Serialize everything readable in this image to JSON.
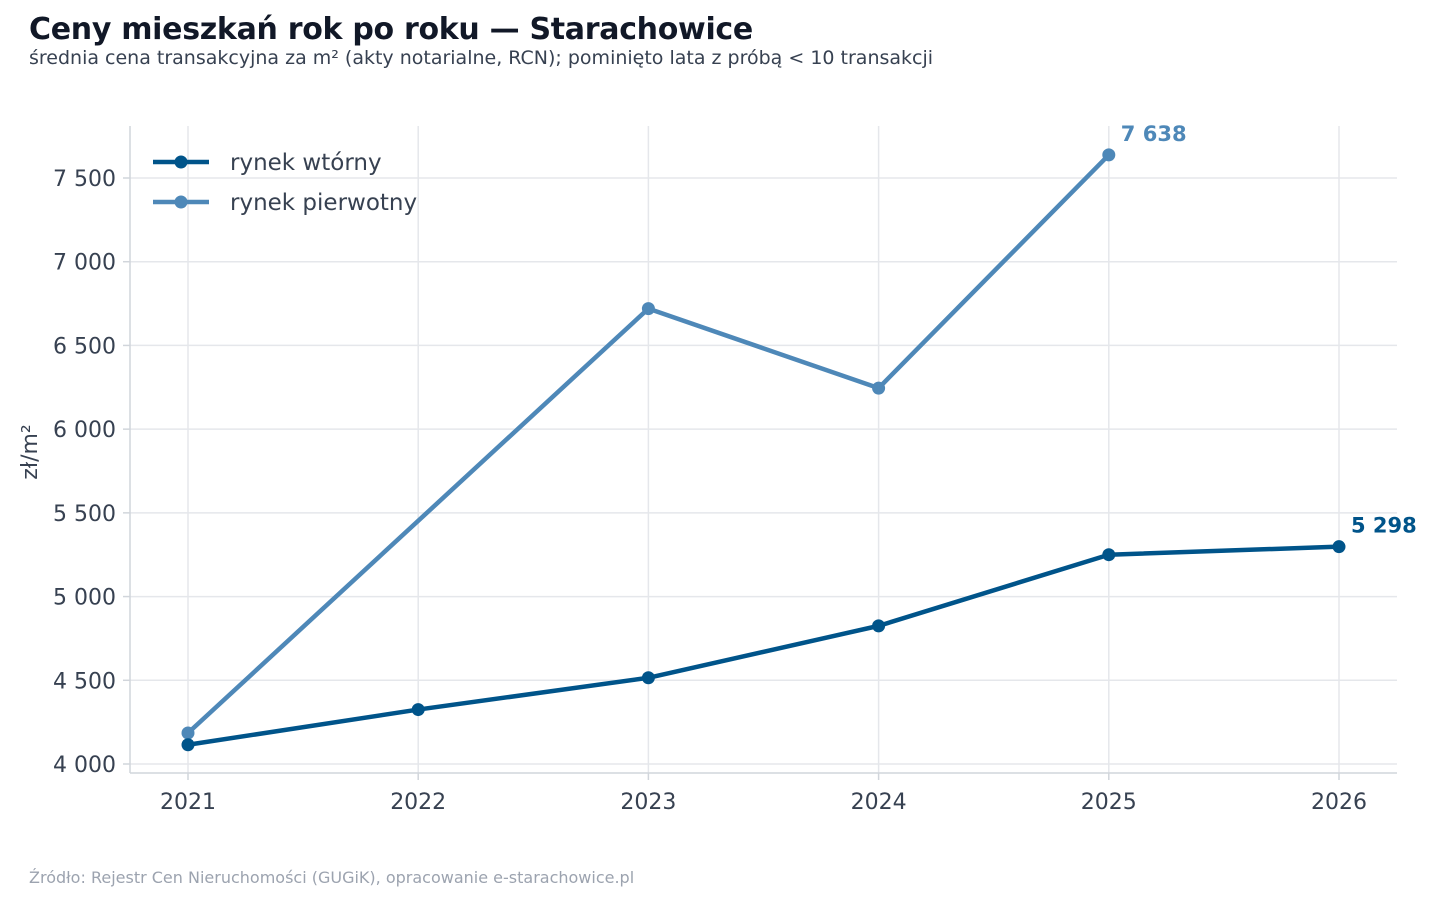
{
  "header": {
    "title": "Ceny mieszkań rok po roku — Starachowice",
    "subtitle": "średnia cena transakcyjna za m² (akty notarialne, RCN); pominięto lata z próbą < 10 transakcji"
  },
  "footer": {
    "source": "Źródło: Rejestr Cen Nieruchomości (GUGiK), opracowanie e-starachowice.pl"
  },
  "chart_data": {
    "type": "line",
    "title": "Ceny mieszkań rok po roku — Starachowice",
    "subtitle": "średnia cena transakcyjna za m² (akty notarialne, RCN); pominięto lata z próbą < 10 transakcji",
    "xlabel": "",
    "ylabel": "zł/m²",
    "x": [
      2021,
      2022,
      2023,
      2024,
      2025,
      2026
    ],
    "x_tick_labels": [
      "2021",
      "2022",
      "2023",
      "2024",
      "2025",
      "2026"
    ],
    "y_ticks": [
      4000,
      4500,
      5000,
      5500,
      6000,
      6500,
      7000,
      7500
    ],
    "y_tick_labels": [
      "4 000",
      "4 500",
      "5 000",
      "5 500",
      "6 000",
      "6 500",
      "7 000",
      "7 500"
    ],
    "xlim": [
      2020.75,
      2026.25
    ],
    "ylim": [
      3970,
      7820
    ],
    "grid": true,
    "legend_position": "top-left",
    "series": [
      {
        "name": "rynek wtórny",
        "color": "#00548a",
        "x": [
          2021,
          2022,
          2023,
          2024,
          2025,
          2026
        ],
        "values": [
          4115,
          4325,
          4515,
          4825,
          5250,
          5298
        ],
        "end_label": "5 298"
      },
      {
        "name": "rynek pierwotny",
        "color": "#4e88b8",
        "x": [
          2021,
          2023,
          2024,
          2025
        ],
        "values": [
          4185,
          6720,
          6245,
          7638
        ],
        "end_label": "7 638"
      }
    ]
  }
}
